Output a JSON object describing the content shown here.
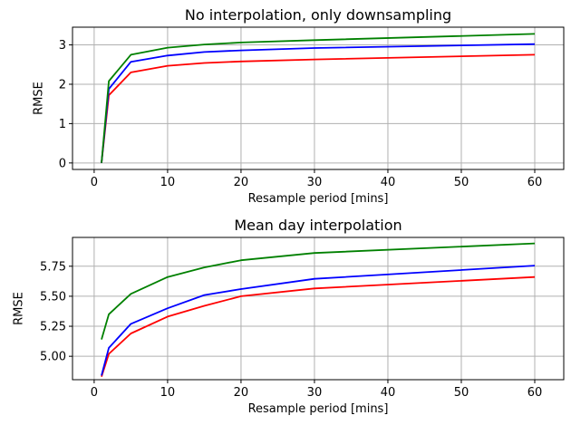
{
  "chart_data": [
    {
      "type": "line",
      "title": "No interpolation, only downsampling",
      "xlabel": "Resample period [mins]",
      "ylabel": "RMSE",
      "ylabel_color": "#ff0000",
      "xlim": [
        -2.95,
        63.95
      ],
      "ylim": [
        -0.165,
        3.45
      ],
      "xticks": [
        0,
        10,
        20,
        30,
        40,
        50,
        60
      ],
      "xtick_labels": [
        "0",
        "10",
        "20",
        "30",
        "40",
        "50",
        "60"
      ],
      "yticks": [
        0,
        1,
        2,
        3
      ],
      "ytick_labels": [
        "0",
        "1",
        "2",
        "3"
      ],
      "grid": true,
      "x": [
        1,
        2,
        5,
        10,
        15,
        20,
        30,
        60
      ],
      "series": [
        {
          "color": "#ff0000",
          "values": [
            0.0,
            1.72,
            2.3,
            2.47,
            2.54,
            2.58,
            2.63,
            2.75
          ]
        },
        {
          "color": "#0000ff",
          "values": [
            0.0,
            1.88,
            2.57,
            2.73,
            2.82,
            2.86,
            2.92,
            3.02
          ]
        },
        {
          "color": "#008000",
          "values": [
            0.0,
            2.08,
            2.75,
            2.93,
            3.01,
            3.06,
            3.12,
            3.28
          ]
        }
      ]
    },
    {
      "type": "line",
      "title": "Mean day interpolation",
      "xlabel": "Resample period [mins]",
      "ylabel": "RMSE",
      "ylabel_color": "#ff0000",
      "xlim": [
        -2.95,
        63.95
      ],
      "ylim": [
        4.805,
        5.99
      ],
      "xticks": [
        0,
        10,
        20,
        30,
        40,
        50,
        60
      ],
      "xtick_labels": [
        "0",
        "10",
        "20",
        "30",
        "40",
        "50",
        "60"
      ],
      "yticks": [
        5.0,
        5.25,
        5.5,
        5.75
      ],
      "ytick_labels": [
        "5.00",
        "5.25",
        "5.50",
        "5.75"
      ],
      "grid": true,
      "x": [
        1,
        2,
        5,
        10,
        15,
        20,
        30,
        60
      ],
      "series": [
        {
          "color": "#ff0000",
          "values": [
            4.83,
            5.02,
            5.19,
            5.33,
            5.42,
            5.5,
            5.565,
            5.66
          ]
        },
        {
          "color": "#0000ff",
          "values": [
            4.84,
            5.07,
            5.27,
            5.4,
            5.51,
            5.56,
            5.645,
            5.755
          ]
        },
        {
          "color": "#008000",
          "values": [
            5.14,
            5.35,
            5.52,
            5.66,
            5.74,
            5.8,
            5.86,
            5.94
          ]
        }
      ]
    }
  ]
}
